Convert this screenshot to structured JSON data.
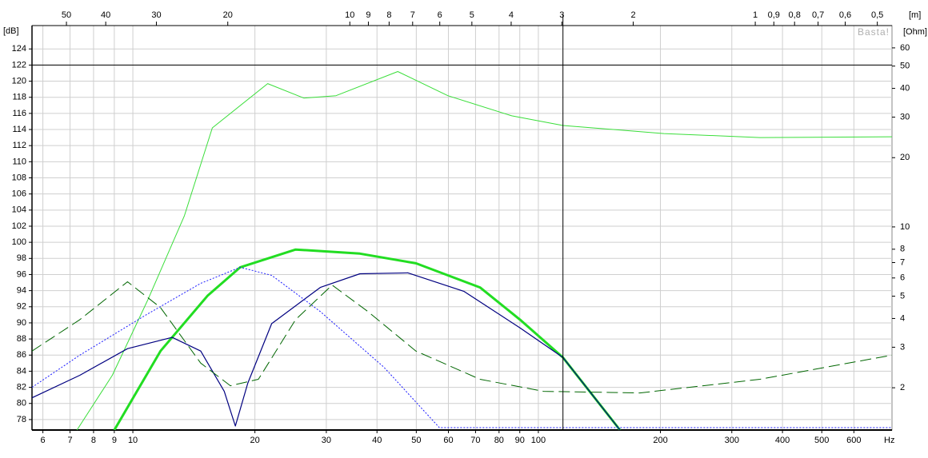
{
  "chart_data": {
    "type": "line",
    "x_label": "Hz",
    "x2_label": "[m]",
    "y_label": "[dB]",
    "y2_label": "[Ohm]",
    "watermark": "Basta!",
    "xscale": "log",
    "y2scale": "log",
    "grid": true,
    "xlim": [
      5.64,
      745
    ],
    "xticks": [
      6,
      7,
      8,
      9,
      10,
      20,
      30,
      40,
      50,
      60,
      70,
      80,
      90,
      100,
      200,
      300,
      400,
      500,
      600
    ],
    "x2lim": [
      60.8,
      0.46
    ],
    "x2ticks": [
      50,
      40,
      30,
      20,
      10,
      9,
      8,
      7,
      6,
      5,
      4,
      3,
      2,
      1,
      {
        "value": 0.9,
        "label": "0,9"
      },
      {
        "value": 0.8,
        "label": "0,8"
      },
      {
        "value": 0.7,
        "label": "0,7"
      },
      {
        "value": 0.6,
        "label": "0,6"
      },
      {
        "value": 0.5,
        "label": "0,5"
      }
    ],
    "ylim": [
      76.7,
      126.9
    ],
    "yticks": [
      78,
      80,
      82,
      84,
      86,
      88,
      90,
      92,
      94,
      96,
      98,
      100,
      102,
      104,
      106,
      108,
      110,
      112,
      114,
      116,
      118,
      120,
      122,
      124
    ],
    "y2lim": [
      1.31,
      75
    ],
    "y2ticks": [
      2,
      3,
      4,
      5,
      6,
      7,
      8,
      10,
      20,
      30,
      40,
      50,
      60
    ],
    "cursor": {
      "x": 115,
      "y": 122
    },
    "series": [
      {
        "color": "#3ade3a",
        "width": 1,
        "dash": "none",
        "x": [
          7.28,
          8.9,
          10.9,
          13.4,
          15.7,
          21.5,
          26.4,
          31.7,
          45,
          59.8,
          86,
          115,
          204,
          352,
          745
        ],
        "values": [
          76.7,
          83.5,
          92.9,
          103.3,
          114.2,
          119.7,
          117.9,
          118.2,
          121.2,
          118.2,
          115.7,
          114.5,
          113.5,
          113,
          113.1
        ]
      },
      {
        "color": "#22dd22",
        "width": 3,
        "dash": "none",
        "x": [
          9,
          11.7,
          15.3,
          18.4,
          25.2,
          36.3,
          49.9,
          71.8,
          90.1,
          115,
          159
        ],
        "values": [
          76.7,
          86.5,
          93.4,
          96.9,
          99.1,
          98.6,
          97.4,
          94.4,
          90.4,
          85.7,
          76.7
        ]
      },
      {
        "color": "#000080",
        "width": 1.2,
        "dash": "none",
        "x": [
          5.64,
          7.4,
          9.7,
          12.5,
          14.7,
          16.8,
          17.9,
          19.2,
          22,
          29,
          36.3,
          47.7,
          65.6,
          90,
          115,
          159
        ],
        "values": [
          80.7,
          83.5,
          86.8,
          88.2,
          86.5,
          81.5,
          77.2,
          82.5,
          89.9,
          94.4,
          96.1,
          96.2,
          93.9,
          89.4,
          85.7,
          76.7
        ]
      },
      {
        "color": "#1a1aff",
        "width": 1,
        "dash": "2,2",
        "x": [
          5.64,
          7.4,
          10.7,
          14.7,
          18.4,
          22,
          29,
          41.6,
          57,
          745
        ],
        "values": [
          82,
          86,
          90.9,
          94.9,
          96.9,
          95.9,
          91.4,
          84.5,
          77,
          77
        ]
      },
      {
        "color": "#006600",
        "width": 1,
        "dash": "14,6",
        "x": [
          5.64,
          7.4,
          9.7,
          11.7,
          14.7,
          17.4,
          20.4,
          25.2,
          31,
          38,
          49.9,
          71.8,
          103,
          178,
          352,
          745
        ],
        "values": [
          86.5,
          90.4,
          95.1,
          91.9,
          85,
          82.2,
          83,
          90.4,
          94.7,
          91.4,
          86.5,
          83,
          81.5,
          81.3,
          83,
          86
        ]
      }
    ]
  }
}
